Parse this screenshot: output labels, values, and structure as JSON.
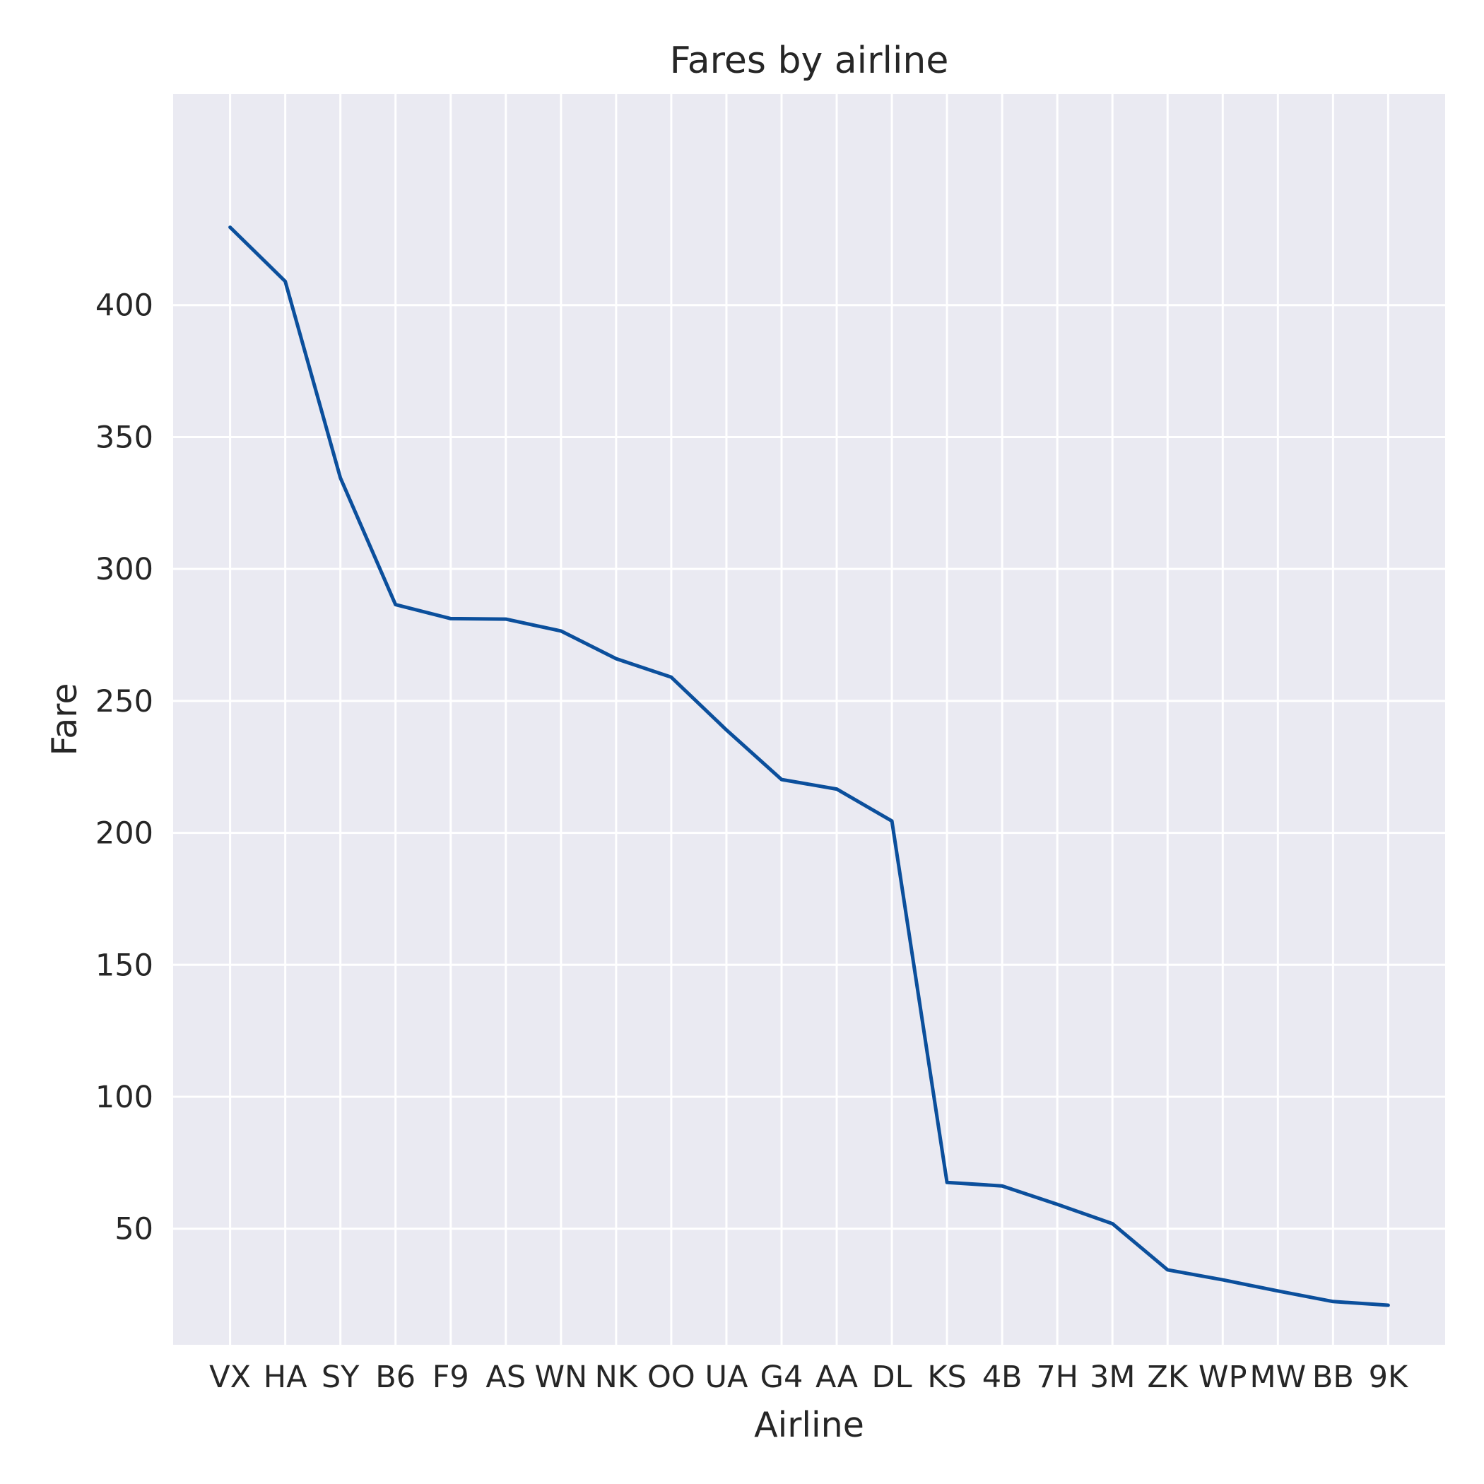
{
  "colors": {
    "plot_background": "#EAEAF2",
    "grid": "#FFFFFF",
    "line": "#0B4F9C",
    "text": "#262626"
  },
  "chart_data": {
    "type": "line",
    "title": "Fares by airline",
    "xlabel": "Airline",
    "ylabel": "Fare",
    "categories": [
      "VX",
      "HA",
      "SY",
      "B6",
      "F9",
      "AS",
      "WN",
      "NK",
      "OO",
      "UA",
      "G4",
      "AA",
      "DL",
      "KS",
      "4B",
      "7H",
      "3M",
      "ZK",
      "WP",
      "MW",
      "BB",
      "9K"
    ],
    "series": [
      {
        "values": [
          429.5,
          409,
          334.5,
          286.5,
          281.2,
          281,
          276.5,
          266,
          259,
          239,
          220.2,
          216.6,
          204.5,
          67.5,
          66.2,
          59.2,
          51.9,
          34.4,
          30.6,
          26.4,
          22.4,
          21.0
        ]
      }
    ],
    "ylim": [
      6,
      480
    ],
    "yticks": [
      50,
      100,
      150,
      200,
      250,
      300,
      350,
      400
    ],
    "grid": true,
    "legend": "none"
  }
}
